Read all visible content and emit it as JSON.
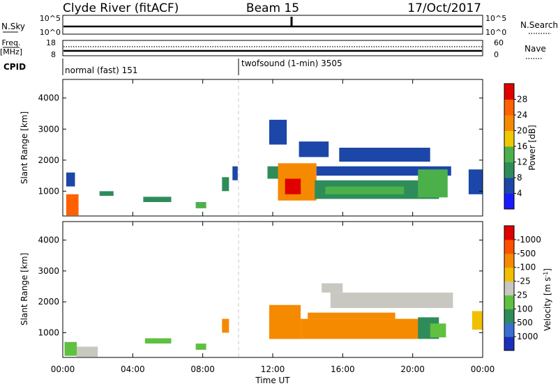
{
  "header": {
    "station": "Clyde River (fitACF)",
    "beam": "Beam 15",
    "date": "17/Oct/2017"
  },
  "nsky_panel": {
    "left_label": "N.Sky",
    "left_ticks": [
      "10^5",
      "10^0"
    ],
    "right_ticks": [
      "10^5",
      "10^0"
    ],
    "right_label": "N.Search"
  },
  "freq_panel": {
    "label_lines": [
      "Freq.",
      "[MHz]"
    ],
    "left_ticks": [
      "18",
      "8"
    ],
    "right_ticks": [
      "60",
      "0"
    ],
    "right_label": "Nave"
  },
  "cpid": {
    "label": "CPID",
    "segments": [
      {
        "label": "normal (fast) 151",
        "start_hour": 0
      },
      {
        "label": "twofsound (1-min) 3505",
        "start_hour": 10
      }
    ]
  },
  "chart_data": [
    {
      "type": "heatmap",
      "name": "power",
      "ylabel": "Slant Range [km]",
      "ylim": [
        200,
        4600
      ],
      "yticks": [
        1000,
        2000,
        3000,
        4000
      ],
      "xlim": [
        0,
        24
      ],
      "colorbar": {
        "label": "Power [dB]",
        "ticks": [
          4,
          8,
          12,
          16,
          20,
          24,
          28
        ],
        "colors": [
          "#1a1aff",
          "#1c47a8",
          "#2e8c5a",
          "#4cb04a",
          "#f0c800",
          "#f58a00",
          "#ff6000",
          "#e00000"
        ]
      },
      "regions": [
        {
          "t0": 0.2,
          "t1": 0.9,
          "r0": 220,
          "r1": 900,
          "level": 6
        },
        {
          "t0": 0.2,
          "t1": 0.7,
          "r0": 1150,
          "r1": 1600,
          "level": 1
        },
        {
          "t0": 2.1,
          "t1": 2.9,
          "r0": 850,
          "r1": 1000,
          "level": 2
        },
        {
          "t0": 4.6,
          "t1": 6.2,
          "r0": 650,
          "r1": 820,
          "level": 2
        },
        {
          "t0": 7.6,
          "t1": 8.2,
          "r0": 450,
          "r1": 650,
          "level": 3
        },
        {
          "t0": 9.1,
          "t1": 9.5,
          "r0": 1000,
          "r1": 1450,
          "level": 2
        },
        {
          "t0": 9.7,
          "t1": 10.0,
          "r0": 1350,
          "r1": 1800,
          "level": 1
        },
        {
          "t0": 11.7,
          "t1": 12.3,
          "r0": 1400,
          "r1": 1800,
          "level": 2
        },
        {
          "t0": 12.3,
          "t1": 14.5,
          "r0": 700,
          "r1": 1900,
          "level": 5
        },
        {
          "t0": 12.7,
          "t1": 13.6,
          "r0": 900,
          "r1": 1400,
          "level": 7
        },
        {
          "t0": 14.4,
          "t1": 21.5,
          "r0": 750,
          "r1": 1350,
          "level": 2
        },
        {
          "t0": 15.0,
          "t1": 19.5,
          "r0": 900,
          "r1": 1150,
          "level": 3
        },
        {
          "t0": 14.5,
          "t1": 22.2,
          "r0": 1500,
          "r1": 1800,
          "level": 1
        },
        {
          "t0": 15.8,
          "t1": 21.0,
          "r0": 1950,
          "r1": 2400,
          "level": 1
        },
        {
          "t0": 13.5,
          "t1": 15.2,
          "r0": 2100,
          "r1": 2600,
          "level": 1
        },
        {
          "t0": 20.3,
          "t1": 22.0,
          "r0": 800,
          "r1": 1700,
          "level": 3
        },
        {
          "t0": 23.2,
          "t1": 24.0,
          "r0": 900,
          "r1": 1700,
          "level": 1
        },
        {
          "t0": 11.8,
          "t1": 12.8,
          "r0": 2500,
          "r1": 3300,
          "level": 1
        }
      ]
    },
    {
      "type": "heatmap",
      "name": "velocity",
      "ylabel": "Slant Range [km]",
      "ylim": [
        200,
        4600
      ],
      "yticks": [
        1000,
        2000,
        3000,
        4000
      ],
      "xlim": [
        0,
        24
      ],
      "colorbar": {
        "label": "Velocity [m s^-1]",
        "ticks": [
          "1000",
          "500",
          "100",
          "25",
          "-25",
          "-100",
          "-500",
          "-1000"
        ],
        "colors": [
          "#1b2fb8",
          "#3a6fd0",
          "#2e8c5a",
          "#60c040",
          "#c8c8c0",
          "#f0c000",
          "#f58a00",
          "#ff5000",
          "#e00000"
        ]
      },
      "regions": [
        {
          "t0": 0.1,
          "t1": 0.8,
          "r0": 250,
          "r1": 700,
          "level": 3
        },
        {
          "t0": 0.8,
          "t1": 2.0,
          "r0": 220,
          "r1": 550,
          "level": 4
        },
        {
          "t0": 4.7,
          "t1": 6.2,
          "r0": 650,
          "r1": 820,
          "level": 3
        },
        {
          "t0": 7.6,
          "t1": 8.2,
          "r0": 450,
          "r1": 650,
          "level": 3
        },
        {
          "t0": 9.1,
          "t1": 9.5,
          "r0": 1000,
          "r1": 1450,
          "level": 6
        },
        {
          "t0": 11.8,
          "t1": 13.6,
          "r0": 800,
          "r1": 1900,
          "level": 6
        },
        {
          "t0": 13.6,
          "t1": 20.5,
          "r0": 800,
          "r1": 1450,
          "level": 6
        },
        {
          "t0": 14.0,
          "t1": 19.0,
          "r0": 1450,
          "r1": 1650,
          "level": 6
        },
        {
          "t0": 15.3,
          "t1": 22.3,
          "r0": 1800,
          "r1": 2300,
          "level": 4
        },
        {
          "t0": 14.8,
          "t1": 16.0,
          "r0": 2300,
          "r1": 2600,
          "level": 4
        },
        {
          "t0": 20.3,
          "t1": 21.5,
          "r0": 800,
          "r1": 1500,
          "level": 2
        },
        {
          "t0": 21.0,
          "t1": 21.9,
          "r0": 850,
          "r1": 1300,
          "level": 3
        },
        {
          "t0": 23.4,
          "t1": 24.0,
          "r0": 1100,
          "r1": 1700,
          "level": 5
        }
      ]
    }
  ],
  "time_axis": {
    "ticks": [
      "00:00",
      "04:00",
      "08:00",
      "12:00",
      "16:00",
      "20:00",
      "00:00"
    ],
    "label": "Time UT"
  }
}
